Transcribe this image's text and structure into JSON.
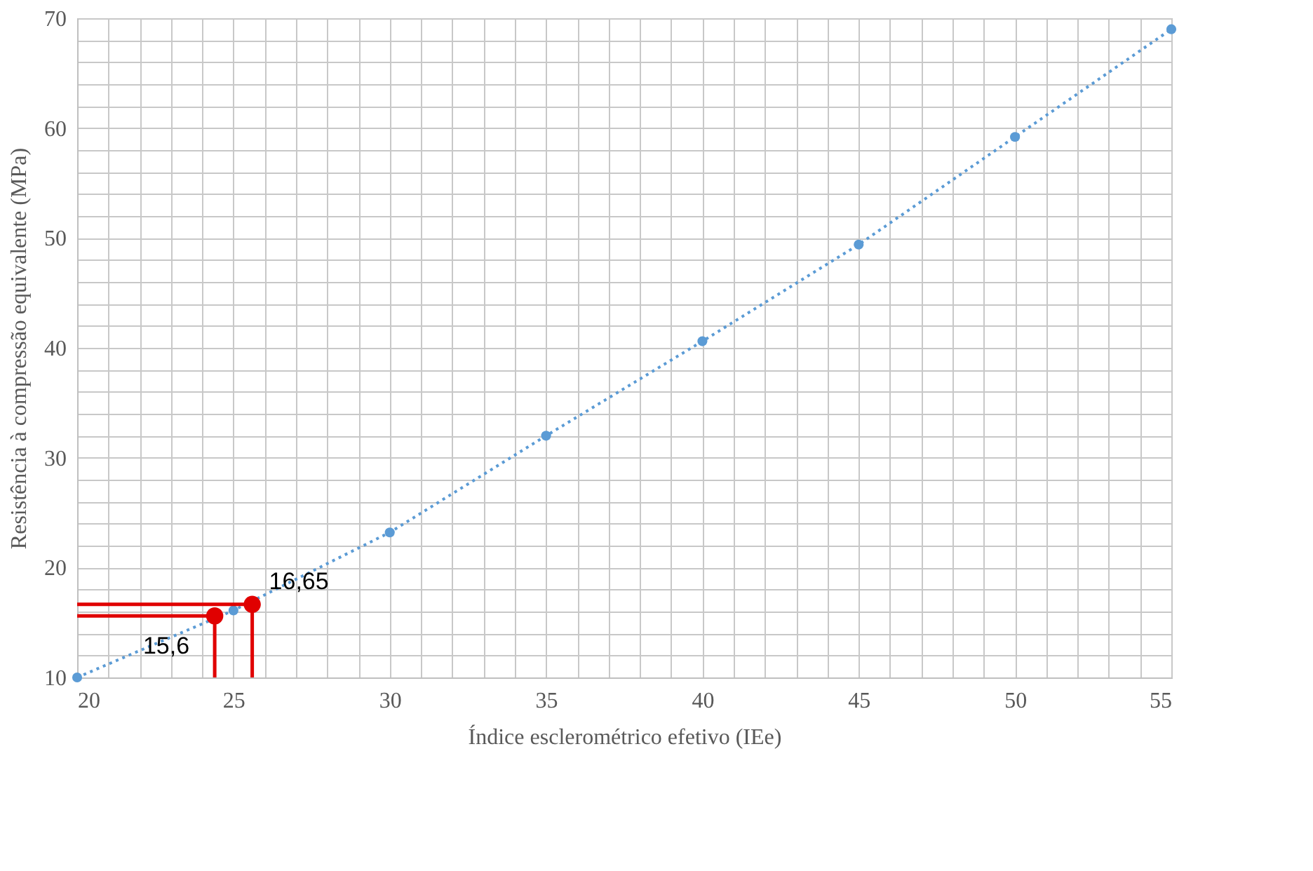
{
  "chart_data": {
    "type": "line",
    "xlabel": "Índice esclerométrico efetivo (IEe)",
    "ylabel": "Resistência à compressão equivalente (MPa)",
    "xlim": [
      20,
      55
    ],
    "ylim": [
      10,
      70
    ],
    "xticks": [
      20,
      {
        "value": 21,
        "label": null
      },
      {
        "value": 22,
        "label": null
      },
      {
        "value": 23,
        "label": null
      },
      {
        "value": 24,
        "label": null
      },
      25,
      {
        "value": 26,
        "label": null
      },
      {
        "value": 27,
        "label": null
      },
      {
        "value": 28,
        "label": null
      },
      {
        "value": 29,
        "label": null
      },
      30,
      {
        "value": 31,
        "label": null
      },
      {
        "value": 32,
        "label": null
      },
      {
        "value": 33,
        "label": null
      },
      {
        "value": 34,
        "label": null
      },
      35,
      {
        "value": 36,
        "label": null
      },
      {
        "value": 37,
        "label": null
      },
      {
        "value": 38,
        "label": null
      },
      {
        "value": 39,
        "label": null
      },
      40,
      {
        "value": 41,
        "label": null
      },
      {
        "value": 42,
        "label": null
      },
      {
        "value": 43,
        "label": null
      },
      {
        "value": 44,
        "label": null
      },
      45,
      {
        "value": 46,
        "label": null
      },
      {
        "value": 47,
        "label": null
      },
      {
        "value": 48,
        "label": null
      },
      {
        "value": 49,
        "label": null
      },
      50,
      {
        "value": 51,
        "label": null
      },
      {
        "value": 52,
        "label": null
      },
      {
        "value": 53,
        "label": null
      },
      {
        "value": 54,
        "label": null
      },
      55
    ],
    "yticks": [
      10,
      {
        "value": 12,
        "label": null
      },
      {
        "value": 14,
        "label": null
      },
      {
        "value": 16,
        "label": null
      },
      {
        "value": 18,
        "label": null
      },
      20,
      {
        "value": 22,
        "label": null
      },
      {
        "value": 24,
        "label": null
      },
      {
        "value": 26,
        "label": null
      },
      {
        "value": 28,
        "label": null
      },
      30,
      {
        "value": 32,
        "label": null
      },
      {
        "value": 34,
        "label": null
      },
      {
        "value": 36,
        "label": null
      },
      {
        "value": 38,
        "label": null
      },
      40,
      {
        "value": 42,
        "label": null
      },
      {
        "value": 44,
        "label": null
      },
      {
        "value": 46,
        "label": null
      },
      {
        "value": 48,
        "label": null
      },
      50,
      {
        "value": 52,
        "label": null
      },
      {
        "value": 54,
        "label": null
      },
      {
        "value": 56,
        "label": null
      },
      {
        "value": 58,
        "label": null
      },
      60,
      {
        "value": 62,
        "label": null
      },
      {
        "value": 64,
        "label": null
      },
      {
        "value": 66,
        "label": null
      },
      {
        "value": 68,
        "label": null
      },
      70
    ],
    "grid": true,
    "legend": false,
    "series": [
      {
        "color": "#5b9bd5",
        "marker": "circle",
        "line_style": "dotted",
        "x": [
          20,
          25,
          30,
          35,
          40,
          45,
          50,
          55
        ],
        "values": [
          10,
          16.1,
          23.2,
          32,
          40.6,
          49.4,
          59.2,
          69
        ]
      },
      {
        "type": "line",
        "color": "#e00000",
        "marker": "none",
        "line_style": "solid",
        "x": [
          20,
          24.4,
          24.4
        ],
        "values": [
          15.6,
          15.6,
          10
        ]
      },
      {
        "type": "line",
        "color": "#e00000",
        "marker": "none",
        "line_style": "solid",
        "x": [
          20,
          25.6,
          25.6
        ],
        "values": [
          16.65,
          16.65,
          10
        ]
      },
      {
        "type": "scatter",
        "color": "#e00000",
        "marker": "circle",
        "x": [
          24.4,
          25.6
        ],
        "values": [
          15.6,
          16.65
        ],
        "value_labels": [
          "15,6",
          "16,65"
        ]
      }
    ]
  }
}
